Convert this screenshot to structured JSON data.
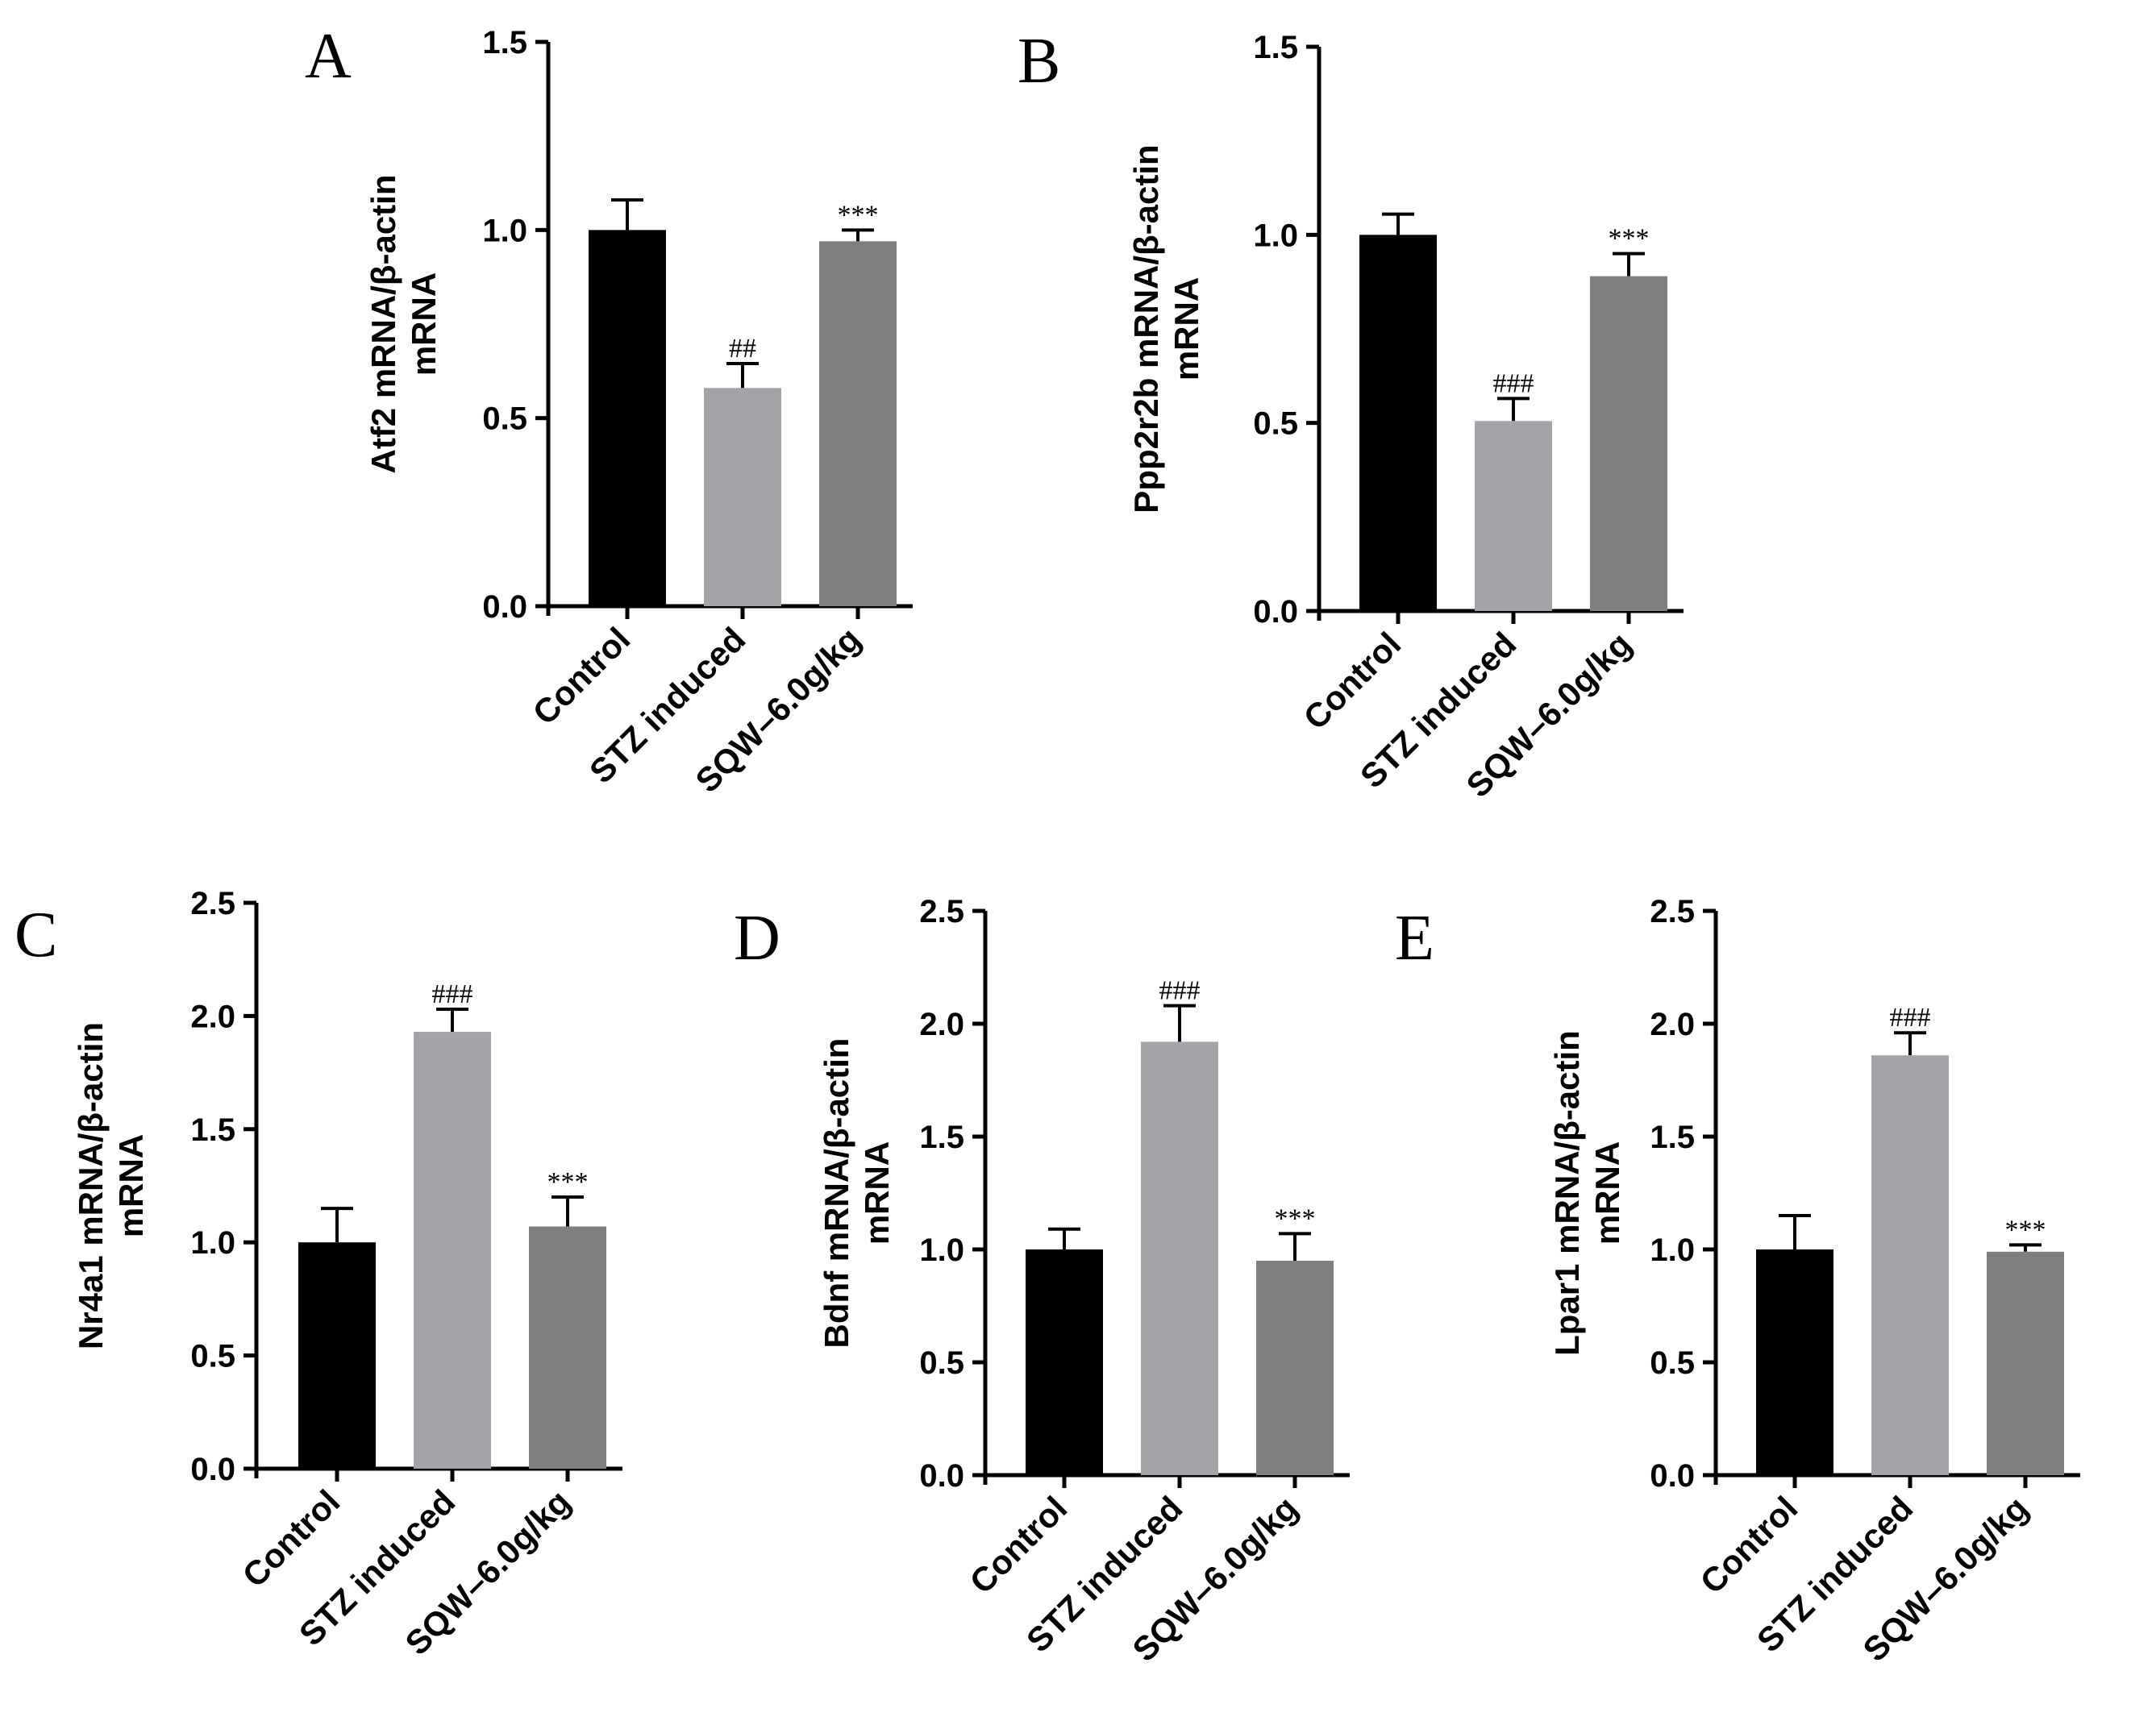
{
  "chart_data": [
    {
      "type": "bar",
      "panel": "A",
      "ylabel_line1": "Atf2 mRNA/β-actin",
      "ylabel_line2": "mRNA",
      "categories": [
        "Control",
        "STZ induced",
        "SQW–6.0g/kg"
      ],
      "values": [
        1.0,
        0.58,
        0.97
      ],
      "errors": [
        0.08,
        0.065,
        0.03
      ],
      "annotations": [
        "",
        "##",
        "***"
      ],
      "colors": [
        "#000000",
        "#a3a3a8",
        "#7f7f7f"
      ],
      "ylim": [
        0,
        1.5
      ],
      "yticks": [
        "0.0",
        "0.5",
        "1.0",
        "1.5"
      ]
    },
    {
      "type": "bar",
      "panel": "B",
      "ylabel_line1": "Ppp2r2b mRNA/β-actin",
      "ylabel_line2": "mRNA",
      "categories": [
        "Control",
        "STZ induced",
        "SQW–6.0g/kg"
      ],
      "values": [
        1.0,
        0.505,
        0.89
      ],
      "errors": [
        0.055,
        0.06,
        0.06
      ],
      "annotations": [
        "",
        "###",
        "***"
      ],
      "colors": [
        "#000000",
        "#a3a3a8",
        "#7f7f7f"
      ],
      "ylim": [
        0,
        1.5
      ],
      "yticks": [
        "0.0",
        "0.5",
        "1.0",
        "1.5"
      ]
    },
    {
      "type": "bar",
      "panel": "C",
      "ylabel_line1": "Nr4a1 mRNA/β-actin",
      "ylabel_line2": "mRNA",
      "categories": [
        "Control",
        "STZ induced",
        "SQW–6.0g/kg"
      ],
      "values": [
        1.0,
        1.93,
        1.07
      ],
      "errors": [
        0.15,
        0.1,
        0.13
      ],
      "annotations": [
        "",
        "###",
        "***"
      ],
      "colors": [
        "#000000",
        "#a3a3a8",
        "#7f7f7f"
      ],
      "ylim": [
        0,
        2.5
      ],
      "yticks": [
        "0.0",
        "0.5",
        "1.0",
        "1.5",
        "2.0",
        "2.5"
      ]
    },
    {
      "type": "bar",
      "panel": "D",
      "ylabel_line1": "Bdnf mRNA/β-actin",
      "ylabel_line2": "mRNA",
      "categories": [
        "Control",
        "STZ induced",
        "SQW–6.0g/kg"
      ],
      "values": [
        1.0,
        1.92,
        0.95
      ],
      "errors": [
        0.09,
        0.16,
        0.12
      ],
      "annotations": [
        "",
        "###",
        "***"
      ],
      "colors": [
        "#000000",
        "#a3a3a8",
        "#7f7f7f"
      ],
      "ylim": [
        0,
        2.5
      ],
      "yticks": [
        "0.0",
        "0.5",
        "1.0",
        "1.5",
        "2.0",
        "2.5"
      ]
    },
    {
      "type": "bar",
      "panel": "E",
      "ylabel_line1": "Lpar1 mRNA/β-actin",
      "ylabel_line2": "mRNA",
      "categories": [
        "Control",
        "STZ induced",
        "SQW–6.0g/kg"
      ],
      "values": [
        1.0,
        1.86,
        0.99
      ],
      "errors": [
        0.15,
        0.1,
        0.03
      ],
      "annotations": [
        "",
        "###",
        "***"
      ],
      "colors": [
        "#000000",
        "#a3a3a8",
        "#7f7f7f"
      ],
      "ylim": [
        0,
        2.5
      ],
      "yticks": [
        "0.0",
        "0.5",
        "1.0",
        "1.5",
        "2.0",
        "2.5"
      ]
    }
  ]
}
